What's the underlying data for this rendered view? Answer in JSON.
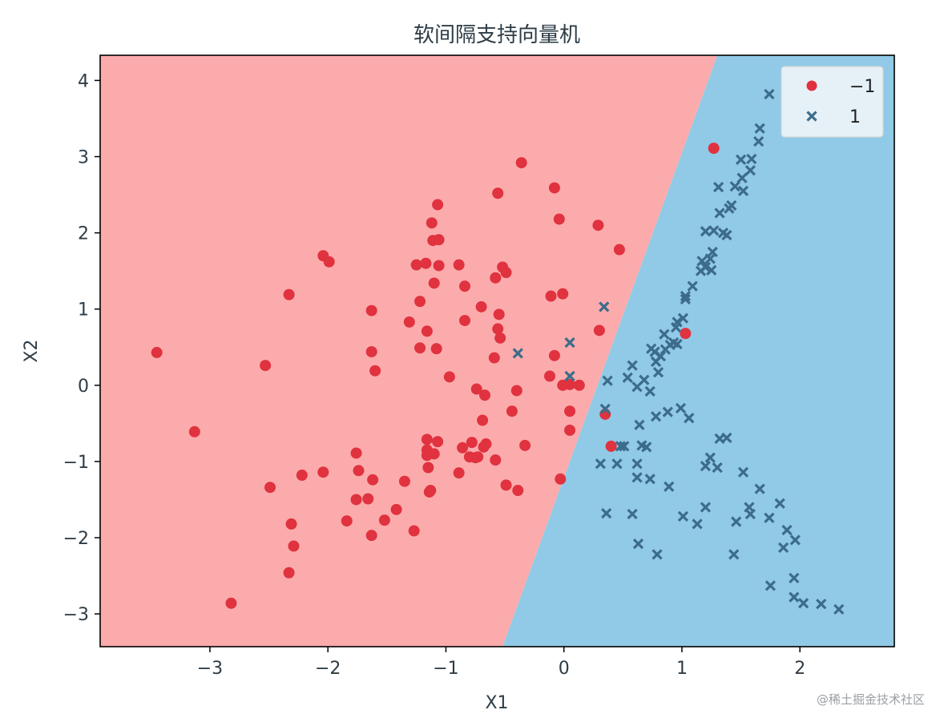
{
  "watermark": "@稀土掘金技术社区",
  "chart_data": {
    "type": "scatter",
    "title": "软间隔支持向量机",
    "xlabel": "X1",
    "ylabel": "X2",
    "xlim": [
      -3.93,
      2.8
    ],
    "ylim": [
      -3.43,
      4.33
    ],
    "xticks": [
      -3,
      -2,
      -1,
      0,
      1,
      2
    ],
    "yticks": [
      -3,
      -2,
      -1,
      0,
      1,
      2,
      3,
      4
    ],
    "xtick_labels": [
      "−3",
      "−2",
      "−1",
      "0",
      "1",
      "2"
    ],
    "ytick_labels": [
      "−3",
      "−2",
      "−1",
      "0",
      "1",
      "2",
      "3",
      "4"
    ],
    "grid": false,
    "legend_position": "upper right",
    "decision_boundary": {
      "points": [
        [
          -0.52,
          -3.43
        ],
        [
          1.3,
          4.33
        ]
      ],
      "negative_region_color": "#fcabac",
      "positive_region_color": "#91cae6"
    },
    "series": [
      {
        "name": "−1",
        "marker": "circle",
        "color": "#e0323f",
        "points": [
          [
            -3.45,
            0.43
          ],
          [
            -3.13,
            -0.61
          ],
          [
            -2.82,
            -2.86
          ],
          [
            -2.53,
            0.26
          ],
          [
            -2.49,
            -1.34
          ],
          [
            -2.33,
            1.19
          ],
          [
            -2.33,
            -2.46
          ],
          [
            -2.31,
            -1.82
          ],
          [
            -2.29,
            -2.11
          ],
          [
            -2.22,
            -1.18
          ],
          [
            -2.04,
            -1.14
          ],
          [
            -2.04,
            1.7
          ],
          [
            -1.99,
            1.62
          ],
          [
            -1.84,
            -1.78
          ],
          [
            -1.76,
            -0.89
          ],
          [
            -1.76,
            -1.5
          ],
          [
            -1.74,
            -1.12
          ],
          [
            -1.66,
            -1.49
          ],
          [
            -1.63,
            -1.97
          ],
          [
            -1.63,
            0.98
          ],
          [
            -1.63,
            0.44
          ],
          [
            -1.62,
            -1.24
          ],
          [
            -1.6,
            0.19
          ],
          [
            -1.52,
            -1.77
          ],
          [
            -1.42,
            -1.63
          ],
          [
            -1.35,
            -1.26
          ],
          [
            -1.31,
            0.83
          ],
          [
            -1.27,
            -1.91
          ],
          [
            -1.25,
            1.58
          ],
          [
            -1.22,
            1.1
          ],
          [
            -1.22,
            0.49
          ],
          [
            -1.17,
            1.6
          ],
          [
            -1.16,
            0.71
          ],
          [
            -1.16,
            -0.71
          ],
          [
            -1.16,
            -0.85
          ],
          [
            -1.16,
            -0.92
          ],
          [
            -1.15,
            -1.08
          ],
          [
            -1.14,
            -1.4
          ],
          [
            -1.13,
            -1.38
          ],
          [
            -1.12,
            2.13
          ],
          [
            -1.11,
            1.9
          ],
          [
            -1.1,
            1.34
          ],
          [
            -1.1,
            -0.9
          ],
          [
            -1.08,
            0.48
          ],
          [
            -1.07,
            2.37
          ],
          [
            -1.07,
            -0.74
          ],
          [
            -1.06,
            1.57
          ],
          [
            -1.06,
            1.91
          ],
          [
            -0.97,
            0.11
          ],
          [
            -0.89,
            1.58
          ],
          [
            -0.89,
            -1.15
          ],
          [
            -0.86,
            -0.82
          ],
          [
            -0.84,
            0.85
          ],
          [
            -0.84,
            1.3
          ],
          [
            -0.8,
            -0.94
          ],
          [
            -0.78,
            -0.75
          ],
          [
            -0.75,
            -0.95
          ],
          [
            -0.74,
            -0.05
          ],
          [
            -0.73,
            -0.94
          ],
          [
            -0.7,
            1.03
          ],
          [
            -0.69,
            -0.46
          ],
          [
            -0.68,
            -0.81
          ],
          [
            -0.67,
            -0.13
          ],
          [
            -0.66,
            -0.77
          ],
          [
            -0.59,
            0.36
          ],
          [
            -0.58,
            1.41
          ],
          [
            -0.58,
            -0.98
          ],
          [
            -0.56,
            2.52
          ],
          [
            -0.56,
            0.74
          ],
          [
            -0.55,
            0.93
          ],
          [
            -0.54,
            0.62
          ],
          [
            -0.52,
            1.55
          ],
          [
            -0.49,
            1.48
          ],
          [
            -0.49,
            -1.31
          ],
          [
            -0.44,
            -0.34
          ],
          [
            -0.4,
            -0.07
          ],
          [
            -0.39,
            -1.38
          ],
          [
            -0.36,
            2.92
          ],
          [
            -0.33,
            -0.79
          ],
          [
            -0.12,
            0.12
          ],
          [
            -0.11,
            1.17
          ],
          [
            -0.08,
            2.59
          ],
          [
            -0.08,
            0.39
          ],
          [
            -0.04,
            2.18
          ],
          [
            -0.03,
            -1.23
          ],
          [
            -0.01,
            1.2
          ],
          [
            -0.01,
            0.0
          ],
          [
            0.05,
            0.01
          ],
          [
            0.05,
            -0.59
          ],
          [
            0.05,
            -0.34
          ],
          [
            0.13,
            0.0
          ],
          [
            0.29,
            2.1
          ],
          [
            0.3,
            0.72
          ],
          [
            0.35,
            -0.38
          ],
          [
            0.4,
            -0.8
          ],
          [
            0.47,
            1.78
          ],
          [
            1.03,
            0.68
          ],
          [
            1.27,
            3.11
          ]
        ]
      },
      {
        "name": "1",
        "marker": "x",
        "color": "#3d6c8b",
        "points": [
          [
            -0.39,
            0.42
          ],
          [
            0.05,
            0.56
          ],
          [
            0.05,
            0.12
          ],
          [
            0.31,
            -1.03
          ],
          [
            0.34,
            1.03
          ],
          [
            0.35,
            -0.31
          ],
          [
            0.36,
            -1.68
          ],
          [
            0.37,
            0.06
          ],
          [
            0.45,
            -1.03
          ],
          [
            0.48,
            -0.8
          ],
          [
            0.51,
            -0.8
          ],
          [
            0.54,
            0.1
          ],
          [
            0.58,
            0.26
          ],
          [
            0.58,
            -1.69
          ],
          [
            0.62,
            -0.02
          ],
          [
            0.62,
            -1.03
          ],
          [
            0.62,
            -1.21
          ],
          [
            0.63,
            -2.08
          ],
          [
            0.64,
            -0.52
          ],
          [
            0.66,
            -0.79
          ],
          [
            0.68,
            0.07
          ],
          [
            0.7,
            -0.81
          ],
          [
            0.73,
            -0.08
          ],
          [
            0.73,
            -1.23
          ],
          [
            0.74,
            0.48
          ],
          [
            0.77,
            0.44
          ],
          [
            0.78,
            0.31
          ],
          [
            0.78,
            -0.41
          ],
          [
            0.79,
            -2.22
          ],
          [
            0.8,
            0.17
          ],
          [
            0.82,
            0.38
          ],
          [
            0.85,
            0.67
          ],
          [
            0.86,
            0.47
          ],
          [
            0.88,
            -0.35
          ],
          [
            0.89,
            -1.33
          ],
          [
            0.9,
            0.53
          ],
          [
            0.93,
            0.56
          ],
          [
            0.95,
            0.76
          ],
          [
            0.96,
            0.54
          ],
          [
            0.96,
            0.83
          ],
          [
            0.99,
            -0.3
          ],
          [
            1.01,
            0.88
          ],
          [
            1.01,
            -1.72
          ],
          [
            1.03,
            1.13
          ],
          [
            1.03,
            1.17
          ],
          [
            1.06,
            -0.43
          ],
          [
            1.09,
            1.3
          ],
          [
            1.13,
            -1.82
          ],
          [
            1.16,
            1.5
          ],
          [
            1.17,
            1.63
          ],
          [
            1.2,
            1.55
          ],
          [
            1.2,
            2.02
          ],
          [
            1.2,
            -1.6
          ],
          [
            1.2,
            -1.06
          ],
          [
            1.24,
            -0.95
          ],
          [
            1.24,
            1.66
          ],
          [
            1.25,
            1.51
          ],
          [
            1.26,
            1.75
          ],
          [
            1.27,
            2.03
          ],
          [
            1.3,
            -1.08
          ],
          [
            1.31,
            2.6
          ],
          [
            1.32,
            2.26
          ],
          [
            1.32,
            -0.7
          ],
          [
            1.35,
            2.0
          ],
          [
            1.38,
            -0.69
          ],
          [
            1.38,
            1.97
          ],
          [
            1.4,
            2.32
          ],
          [
            1.42,
            2.36
          ],
          [
            1.44,
            -2.22
          ],
          [
            1.45,
            2.61
          ],
          [
            1.46,
            -1.79
          ],
          [
            1.5,
            2.96
          ],
          [
            1.51,
            2.72
          ],
          [
            1.52,
            2.55
          ],
          [
            1.52,
            -1.14
          ],
          [
            1.57,
            -1.6
          ],
          [
            1.58,
            -1.69
          ],
          [
            1.58,
            2.82
          ],
          [
            1.59,
            2.97
          ],
          [
            1.65,
            3.2
          ],
          [
            1.66,
            3.37
          ],
          [
            1.66,
            -1.36
          ],
          [
            1.74,
            3.82
          ],
          [
            1.74,
            -1.74
          ],
          [
            1.75,
            -2.63
          ],
          [
            1.83,
            -1.55
          ],
          [
            1.86,
            -2.13
          ],
          [
            1.89,
            -1.9
          ],
          [
            1.95,
            -2.53
          ],
          [
            1.95,
            -2.78
          ],
          [
            1.96,
            -2.03
          ],
          [
            2.03,
            -2.86
          ],
          [
            2.18,
            -2.87
          ],
          [
            2.33,
            -2.94
          ]
        ]
      }
    ]
  }
}
